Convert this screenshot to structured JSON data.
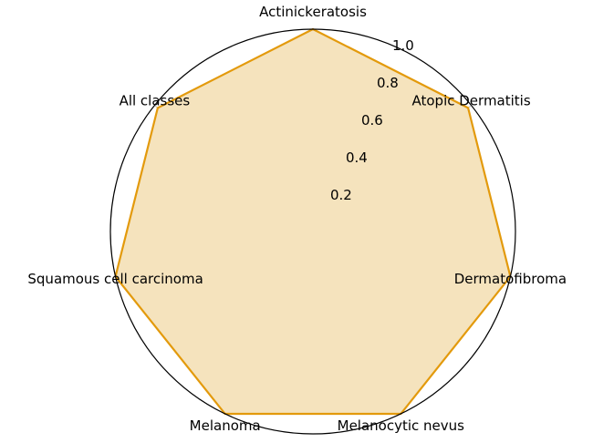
{
  "chart_data": {
    "type": "radar",
    "categories": [
      "Actinickeratosis",
      "Atopic Dermatitis",
      "Dermatofibroma",
      "Melanocytic nevus",
      "Melanoma",
      "Squamous cell carcinoma",
      "All classes"
    ],
    "series": [
      {
        "values": [
          1.0,
          0.98,
          1.0,
          1.0,
          1.0,
          1.0,
          0.98
        ]
      }
    ],
    "rlim": [
      0,
      1.0
    ],
    "rticks": [
      "0.2",
      "0.4",
      "0.6",
      "0.8",
      "1.0"
    ],
    "grid": true,
    "colors": {
      "line": "#e39a0c",
      "fill": "#f5e3bd"
    }
  }
}
